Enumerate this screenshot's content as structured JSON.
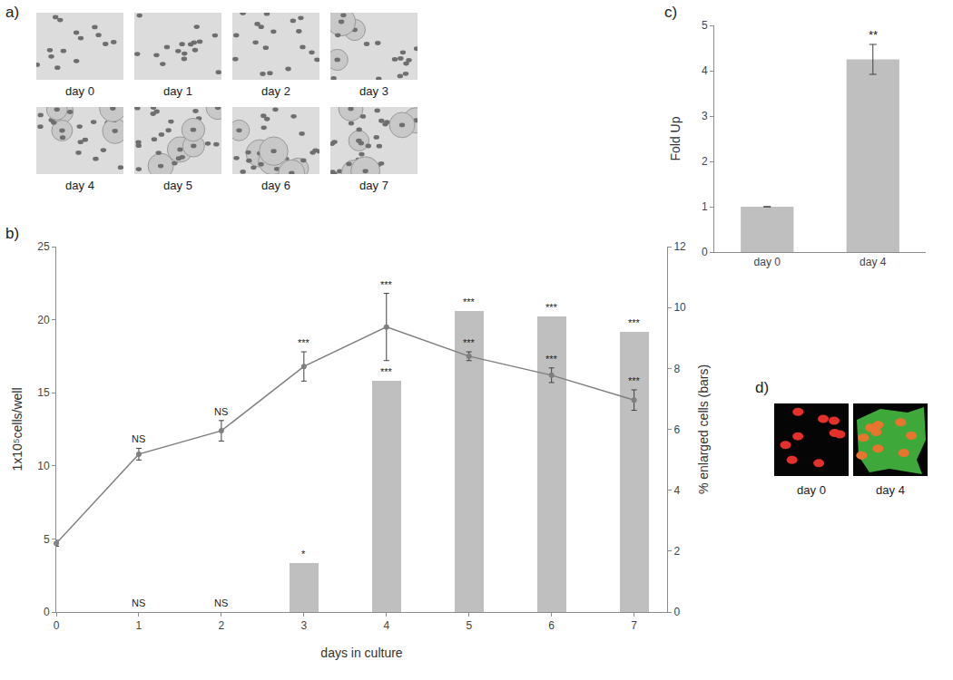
{
  "image_panels": [
    {
      "label": "a)",
      "captions": [
        "day 0",
        "day 1",
        "day 2",
        "day 3",
        "day 4",
        "day 5",
        "day 6",
        "day 7"
      ]
    },
    {
      "label": "d)",
      "captions": [
        "day 0",
        "day 4"
      ]
    }
  ],
  "chart_data": [
    {
      "type": "bar+line",
      "title": "b)",
      "x": [
        0,
        1,
        2,
        3,
        4,
        5,
        6,
        7
      ],
      "x_label": "days in culture",
      "y_label": "1x10⁵cells/well",
      "y2_label": "% enlarged cells (bars)",
      "xlim": [
        0,
        7.4
      ],
      "xticks": [
        0,
        1,
        2,
        3,
        4,
        5,
        6,
        7
      ],
      "ylim": [
        0,
        25
      ],
      "yticks": [
        0,
        5,
        10,
        15,
        20,
        25
      ],
      "y2lim": [
        0,
        12
      ],
      "y2ticks": [
        0,
        2,
        4,
        6,
        8,
        10,
        12
      ],
      "grid": false,
      "series": [
        {
          "type": "bar",
          "axis": "y2",
          "color": "#bfbfbf",
          "values": [
            0,
            0,
            0,
            1.6,
            7.6,
            9.9,
            9.7,
            9.2
          ],
          "annotations": [
            null,
            "NS",
            "NS",
            "*",
            "***",
            "***",
            "***",
            "***"
          ]
        },
        {
          "type": "line",
          "color": "#7f7f7f",
          "marker": "circle",
          "values": [
            4.7,
            10.8,
            12.4,
            16.8,
            19.5,
            17.5,
            16.2,
            14.5
          ],
          "errors": [
            0.2,
            0.4,
            0.7,
            1.0,
            2.3,
            0.3,
            0.5,
            0.7
          ],
          "annotations": [
            null,
            "NS",
            "NS",
            "***",
            "***",
            "***",
            "***",
            "***"
          ]
        }
      ]
    },
    {
      "type": "bar",
      "title": "c)",
      "categories": [
        "day 0",
        "day 4"
      ],
      "values": [
        1,
        4.25
      ],
      "errors": [
        0,
        0.33
      ],
      "annotations": [
        null,
        "**"
      ],
      "y_label": "Fold Up",
      "color": "#bfbfbf",
      "ylim": [
        0,
        5
      ],
      "yticks": [
        0,
        1,
        2,
        3,
        4,
        5
      ],
      "grid": false
    }
  ]
}
